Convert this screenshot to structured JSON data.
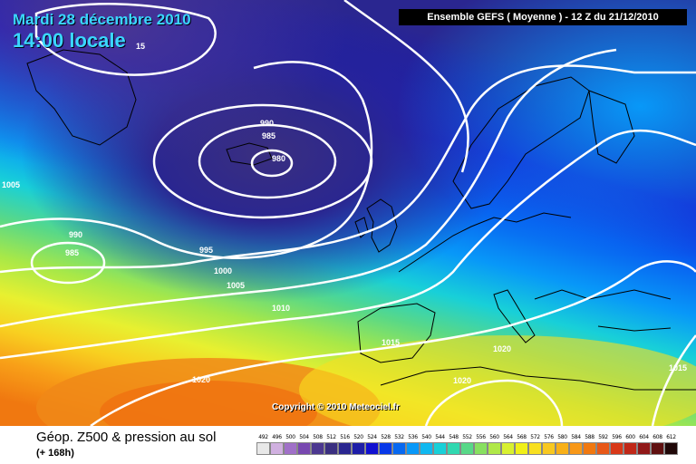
{
  "header": {
    "date": "Mardi 28 décembre 2010",
    "local_time": "14:00 locale",
    "model_run": "Ensemble GEFS ( Moyenne )  -  12 Z du 21/12/2010"
  },
  "copyright": "Copyright © 2010 Meteociel.fr",
  "footer": {
    "title": "Géop. Z500 & pression au sol",
    "forecast_range": "(+ 168h)"
  },
  "isobar_labels": [
    {
      "id": "isobar-990-north",
      "text": "990"
    },
    {
      "id": "isobar-985-north",
      "text": "985"
    },
    {
      "id": "isobar-980",
      "text": "980"
    },
    {
      "id": "isobar-1005-west",
      "text": "1005"
    },
    {
      "id": "isobar-990-west",
      "text": "990"
    },
    {
      "id": "isobar-985-west",
      "text": "985"
    },
    {
      "id": "isobar-995",
      "text": "995"
    },
    {
      "id": "isobar-1000",
      "text": "1000"
    },
    {
      "id": "isobar-1005",
      "text": "1005"
    },
    {
      "id": "isobar-1010",
      "text": "1010"
    },
    {
      "id": "isobar-1015",
      "text": "1015"
    },
    {
      "id": "isobar-1020-spain",
      "text": "1020"
    },
    {
      "id": "isobar-1020-africa",
      "text": "1020"
    },
    {
      "id": "isobar-1020-atlantic",
      "text": "1020"
    },
    {
      "id": "isobar-1015-east",
      "text": "1015"
    },
    {
      "id": "isobar-15-top",
      "text": "15"
    }
  ],
  "scale": {
    "values": [
      "492",
      "496",
      "500",
      "504",
      "508",
      "512",
      "516",
      "520",
      "524",
      "528",
      "532",
      "536",
      "540",
      "544",
      "548",
      "552",
      "556",
      "560",
      "564",
      "568",
      "572",
      "576",
      "580",
      "584",
      "588",
      "592",
      "596",
      "600",
      "604",
      "608",
      "612"
    ],
    "colors": [
      "#e8e8e8",
      "#d0b0e0",
      "#a070c8",
      "#7848b0",
      "#4c3890",
      "#3a2f80",
      "#2a2690",
      "#1e1ea8",
      "#1010d0",
      "#0838e8",
      "#0868f0",
      "#0898f8",
      "#10b8f0",
      "#18d0d8",
      "#30d8b0",
      "#58d888",
      "#88e060",
      "#b0e848",
      "#d8f030",
      "#f0f018",
      "#f8e020",
      "#f8c820",
      "#f8b018",
      "#f89818",
      "#f07810",
      "#e85818",
      "#d83818",
      "#c02818",
      "#901818",
      "#601010",
      "#200808"
    ]
  },
  "colors": {
    "label_cyan": "#3ad7ff",
    "isobar": "#ffffff",
    "coast": "#000000"
  }
}
